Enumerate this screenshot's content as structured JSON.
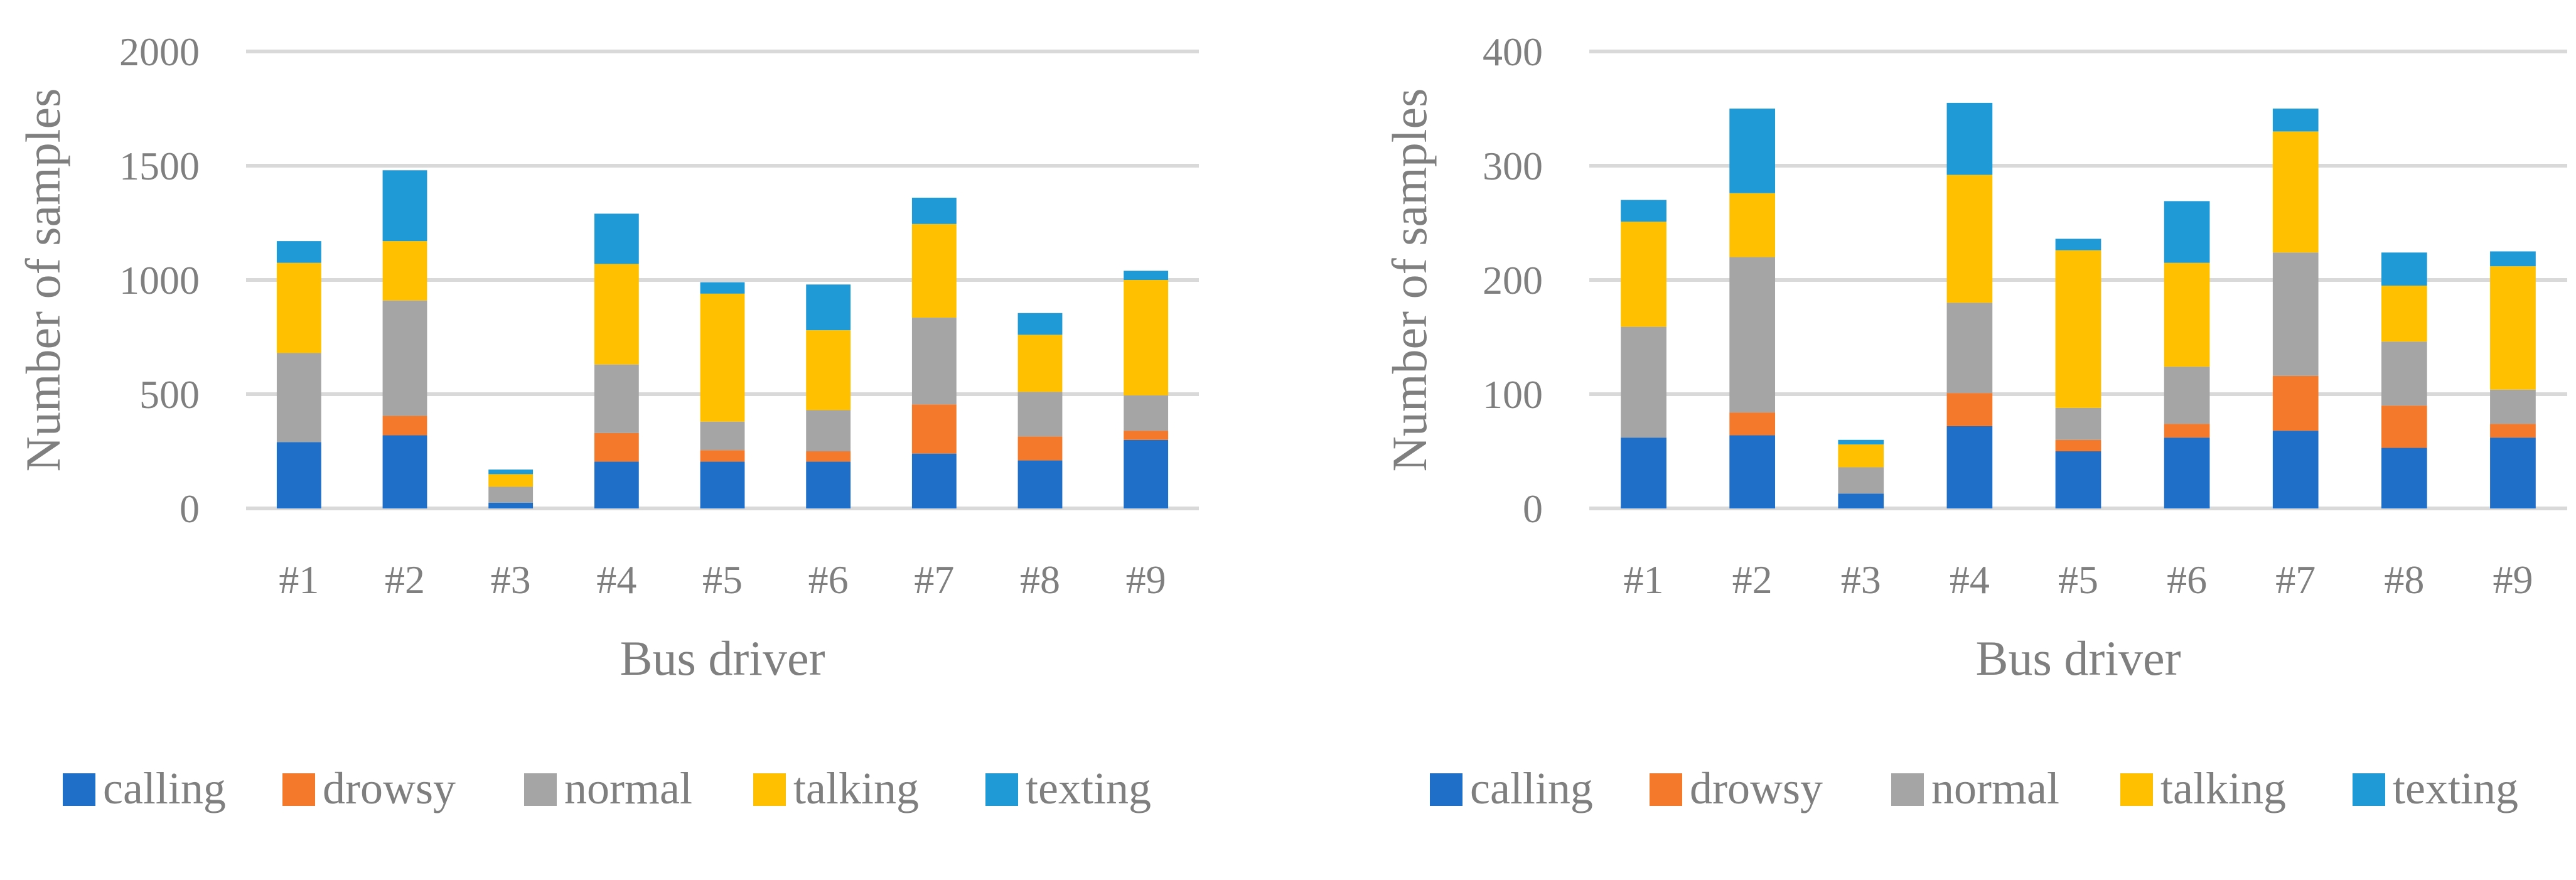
{
  "chart_data": [
    {
      "type": "bar",
      "stacked": true,
      "categories": [
        "#1",
        "#2",
        "#3",
        "#4",
        "#5",
        "#6",
        "#7",
        "#8",
        "#9"
      ],
      "xlabel": "Bus driver",
      "ylabel": "Number of samples",
      "ylim": [
        0,
        2000
      ],
      "yticks": [
        "0",
        "500",
        "1000",
        "1500",
        "2000"
      ],
      "grid": true,
      "legend": "bottom",
      "series": [
        {
          "name": "calling",
          "color": "#1f6fc9",
          "values": [
            290,
            320,
            25,
            205,
            205,
            205,
            240,
            210,
            300
          ]
        },
        {
          "name": "drowsy",
          "color": "#f4792a",
          "values": [
            0,
            85,
            0,
            125,
            50,
            45,
            215,
            105,
            40
          ]
        },
        {
          "name": "normal",
          "color": "#a5a5a5",
          "values": [
            390,
            505,
            70,
            300,
            125,
            180,
            380,
            195,
            155
          ]
        },
        {
          "name": "talking",
          "color": "#ffc000",
          "values": [
            395,
            260,
            55,
            440,
            560,
            350,
            410,
            250,
            505
          ]
        },
        {
          "name": "texting",
          "color": "#1f9ad6",
          "values": [
            95,
            310,
            20,
            220,
            50,
            200,
            115,
            95,
            40
          ]
        }
      ]
    },
    {
      "type": "bar",
      "stacked": true,
      "categories": [
        "#1",
        "#2",
        "#3",
        "#4",
        "#5",
        "#6",
        "#7",
        "#8",
        "#9"
      ],
      "xlabel": "Bus driver",
      "ylabel": "Number of samples",
      "ylim": [
        0,
        400
      ],
      "yticks": [
        "0",
        "100",
        "200",
        "300",
        "400"
      ],
      "grid": true,
      "legend": "bottom",
      "series": [
        {
          "name": "calling",
          "color": "#1f6fc9",
          "values": [
            62,
            64,
            13,
            72,
            50,
            62,
            68,
            53,
            62
          ]
        },
        {
          "name": "drowsy",
          "color": "#f4792a",
          "values": [
            0,
            20,
            0,
            29,
            10,
            12,
            48,
            37,
            12
          ]
        },
        {
          "name": "normal",
          "color": "#a5a5a5",
          "values": [
            97,
            136,
            23,
            79,
            28,
            50,
            108,
            56,
            30
          ]
        },
        {
          "name": "talking",
          "color": "#ffc000",
          "values": [
            92,
            56,
            20,
            112,
            138,
            91,
            106,
            49,
            108
          ]
        },
        {
          "name": "texting",
          "color": "#1f9ad6",
          "values": [
            19,
            74,
            4,
            63,
            10,
            54,
            20,
            29,
            13
          ]
        }
      ]
    }
  ]
}
